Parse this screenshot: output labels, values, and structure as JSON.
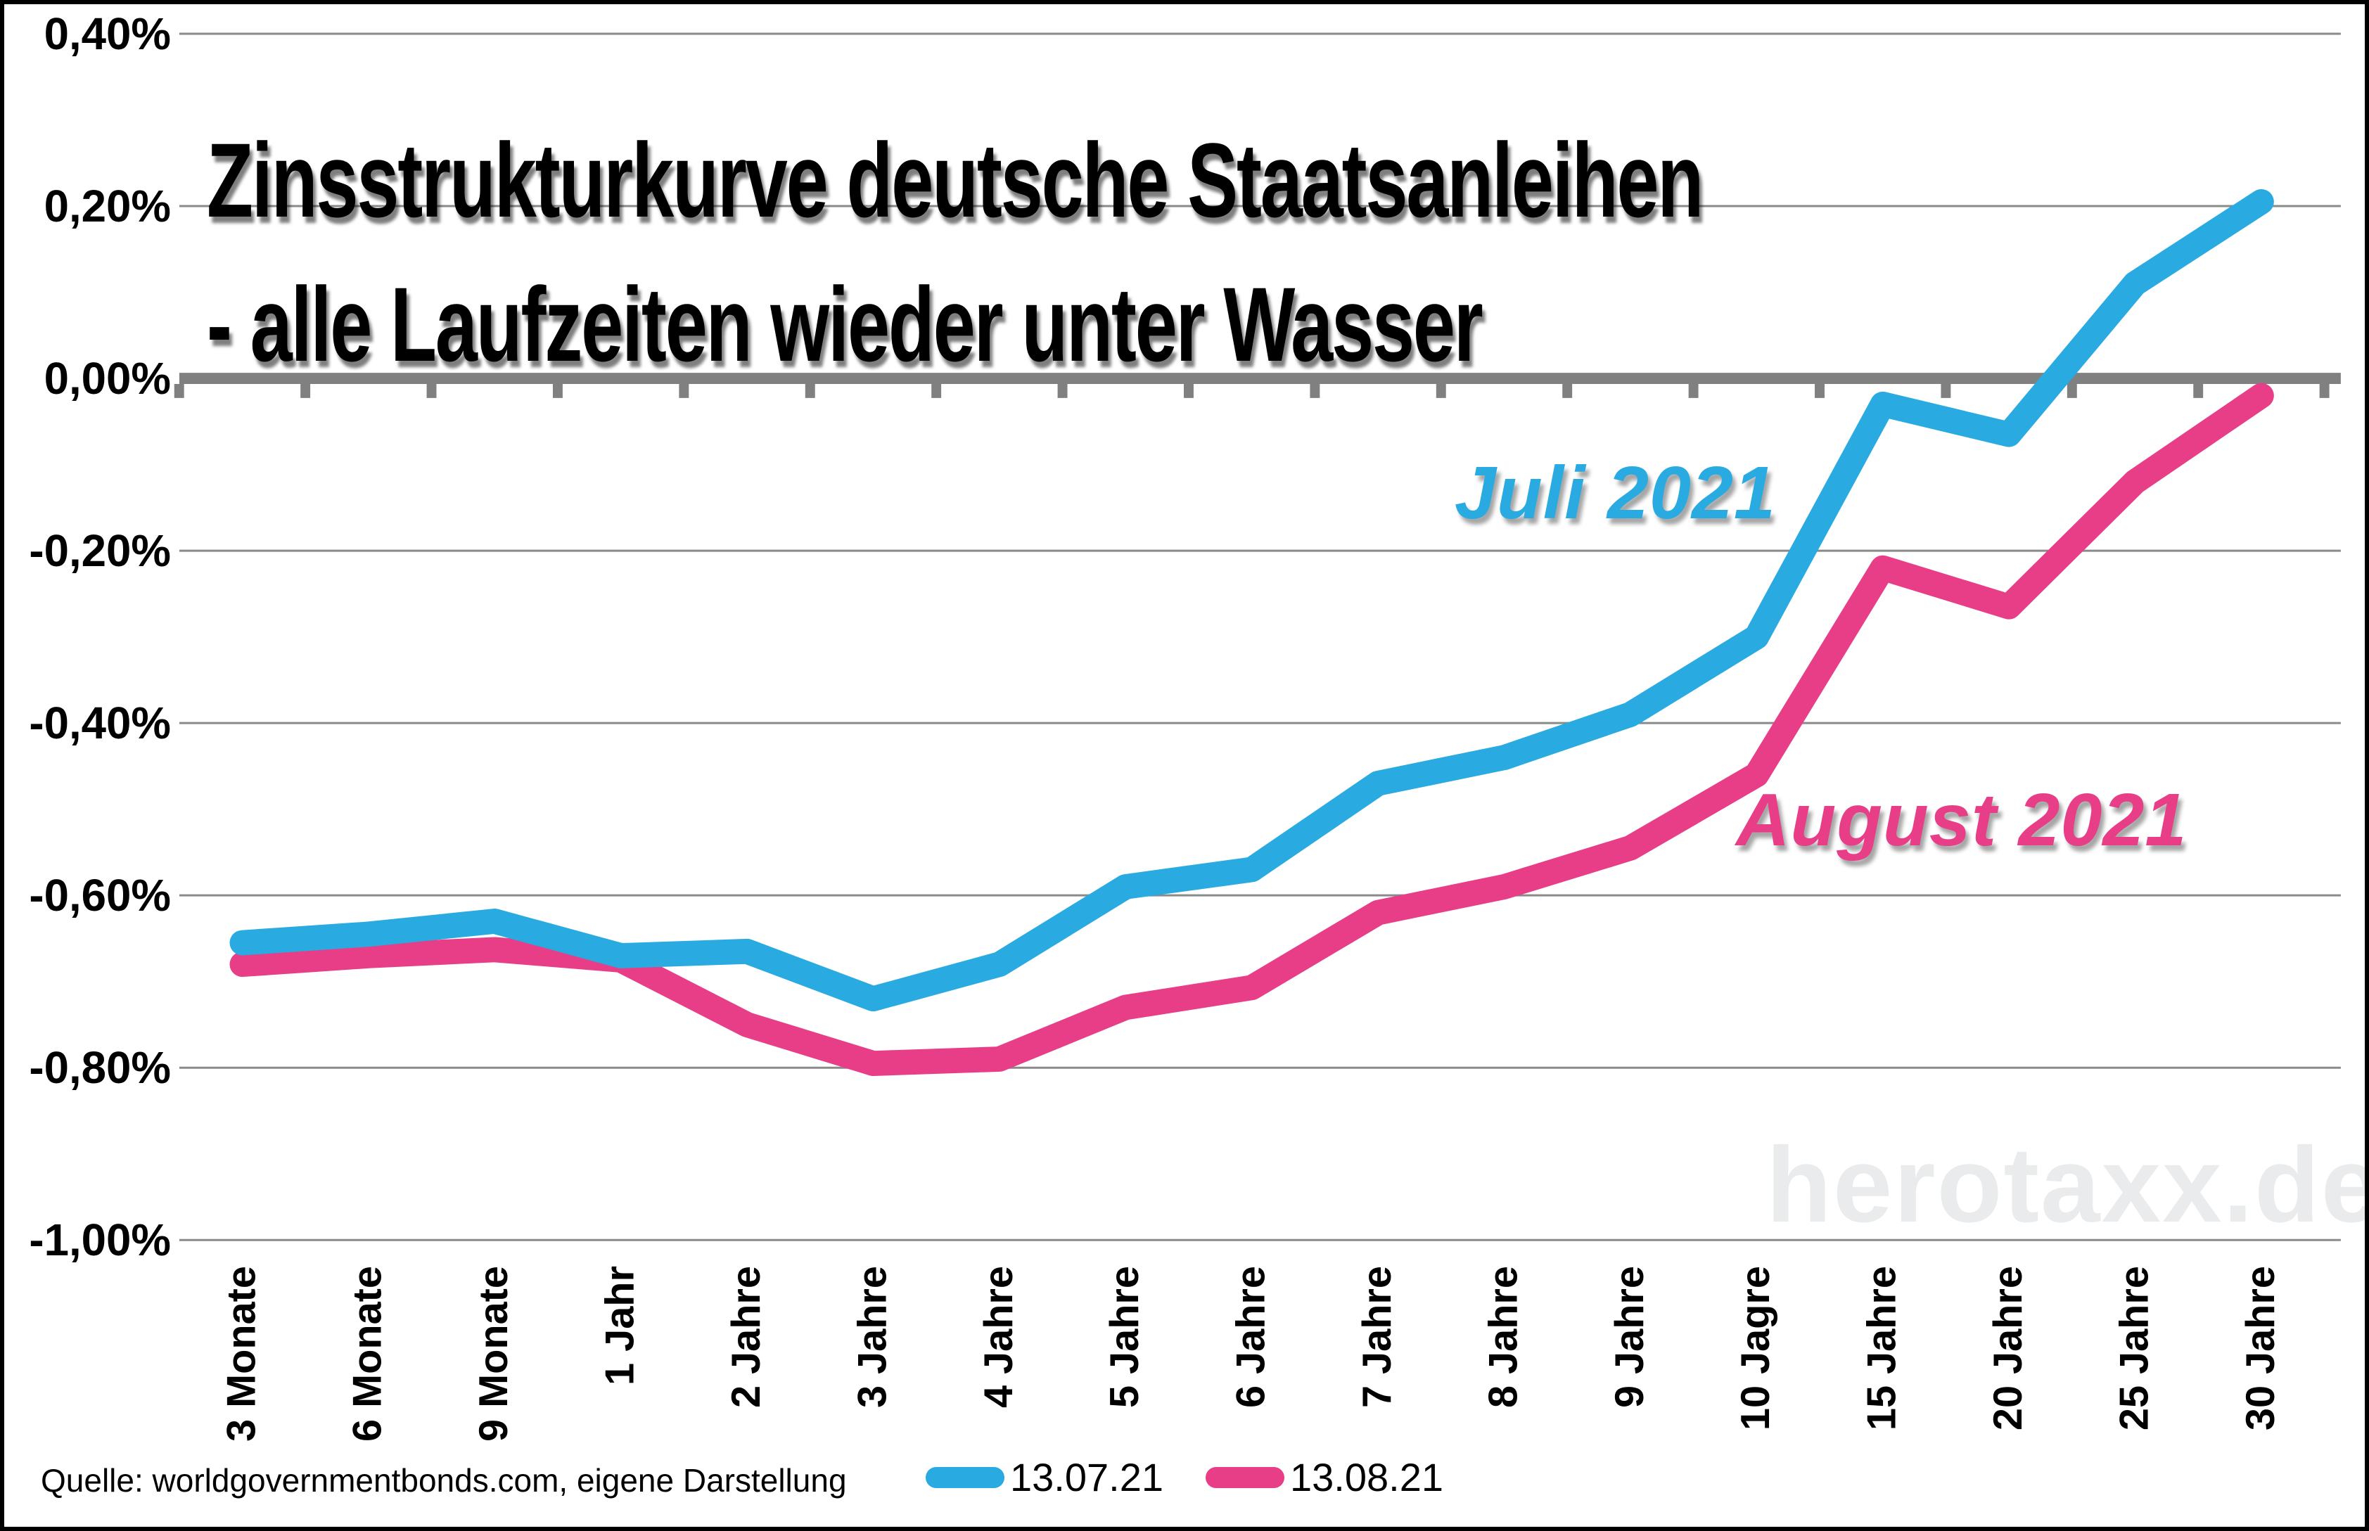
{
  "title": {
    "line1": "Zinsstrukturkurve deutsche Staatsanleihen",
    "line2": "- alle Laufzeiten wieder unter Wasser"
  },
  "annotations": {
    "july": "Juli 2021",
    "august": "August 2021"
  },
  "watermark": "herotaxx.de",
  "source": "Quelle: worldgovernmentbonds.com, eigene Darstellung",
  "colors": {
    "blue_series": "#29abe2",
    "pink_series": "#e83d87",
    "gridline": "#8a8a8a",
    "axis": "#808080",
    "watermark": "#e9ebec",
    "text": "#000000"
  },
  "chart_data": {
    "type": "line",
    "title": "Zinsstrukturkurve deutsche Staatsanleihen - alle Laufzeiten wieder unter Wasser",
    "xlabel": "",
    "ylabel": "",
    "ylim": [
      -1.0,
      0.4
    ],
    "grid": true,
    "legend_position": "bottom-center",
    "categories": [
      "3 Monate",
      "6 Monate",
      "9 Monate",
      "1 Jahr",
      "2 Jahre",
      "3 Jahre",
      "4 Jahre",
      "5 Jahre",
      "6 Jahre",
      "7 Jahre",
      "8 Jahre",
      "9 Jahre",
      "10 Jagre",
      "15 Jahre",
      "20 Jahre",
      "25 Jahre",
      "30 Jahre"
    ],
    "yticks": [
      {
        "label": "0,40%",
        "value": 0.4
      },
      {
        "label": "0,20%",
        "value": 0.2
      },
      {
        "label": "0,00%",
        "value": 0.0
      },
      {
        "label": "-0,20%",
        "value": -0.2
      },
      {
        "label": "-0,40%",
        "value": -0.4
      },
      {
        "label": "-0,60%",
        "value": -0.6
      },
      {
        "label": "-0,80%",
        "value": -0.8
      },
      {
        "label": "-1,00%",
        "value": -1.0
      }
    ],
    "series": [
      {
        "name": "13.07.21",
        "color": "#29abe2",
        "values": [
          -0.655,
          -0.645,
          -0.63,
          -0.67,
          -0.665,
          -0.72,
          -0.68,
          -0.59,
          -0.57,
          -0.47,
          -0.44,
          -0.39,
          -0.3,
          -0.03,
          -0.065,
          0.11,
          0.205
        ]
      },
      {
        "name": "13.08.21",
        "color": "#e83d87",
        "values": [
          -0.68,
          -0.67,
          -0.663,
          -0.675,
          -0.75,
          -0.795,
          -0.79,
          -0.73,
          -0.707,
          -0.62,
          -0.59,
          -0.545,
          -0.46,
          -0.22,
          -0.265,
          -0.12,
          -0.02
        ]
      }
    ]
  }
}
